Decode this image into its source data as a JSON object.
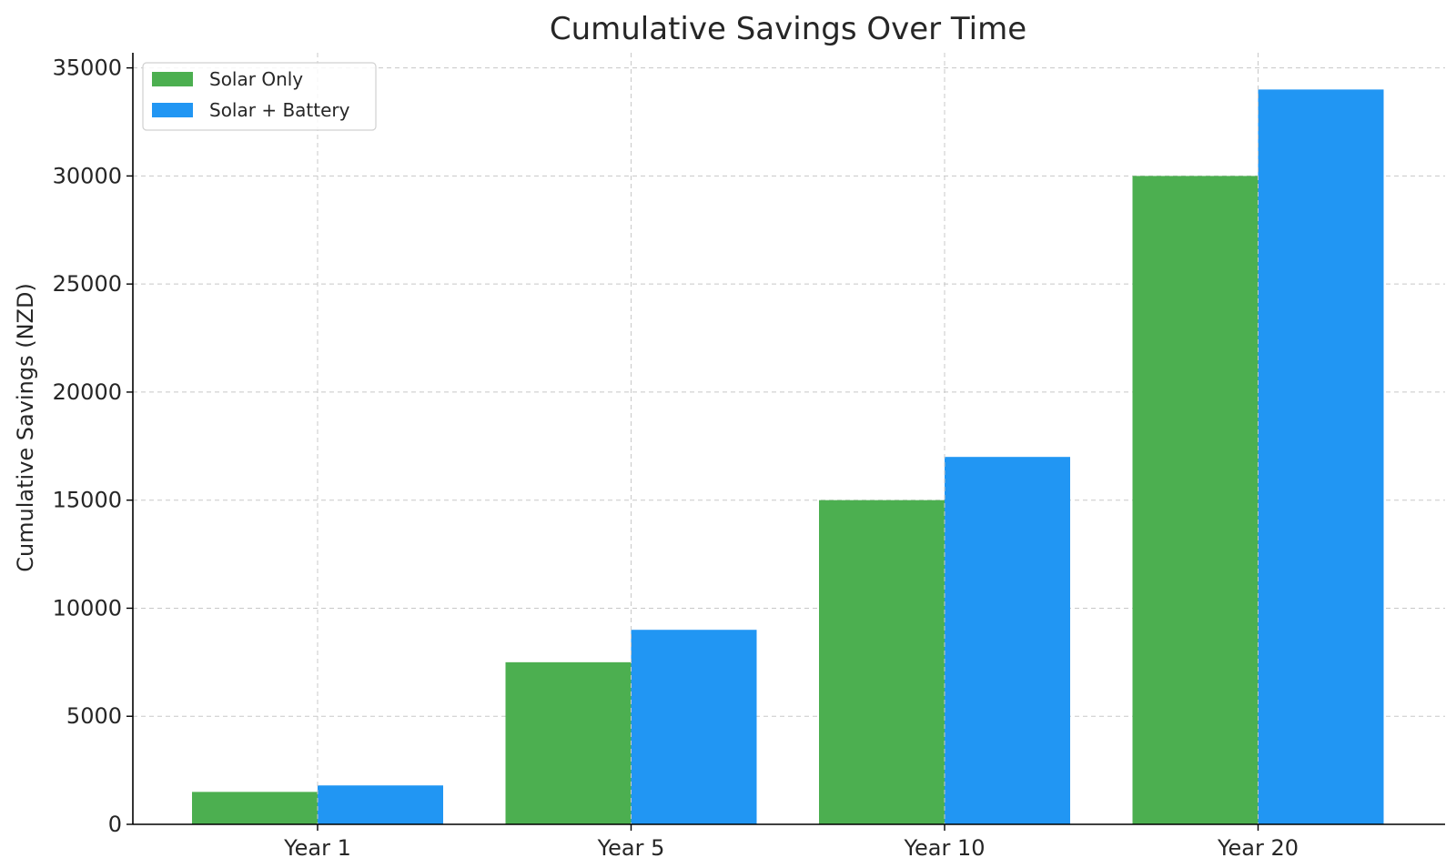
{
  "chart_data": {
    "type": "bar",
    "title": "Cumulative Savings Over Time",
    "xlabel": "",
    "ylabel": "Cumulative Savings (NZD)",
    "categories": [
      "Year 1",
      "Year 5",
      "Year 10",
      "Year 20"
    ],
    "series": [
      {
        "name": "Solar Only",
        "color": "#4caf50",
        "values": [
          1500,
          7500,
          15000,
          30000
        ]
      },
      {
        "name": "Solar + Battery",
        "color": "#2196f3",
        "values": [
          1800,
          9000,
          17000,
          34000
        ]
      }
    ],
    "ylim": [
      0,
      35700
    ],
    "yticks": [
      0,
      5000,
      10000,
      15000,
      20000,
      25000,
      30000,
      35000
    ],
    "ytick_labels": [
      "0",
      "5000",
      "10000",
      "15000",
      "20000",
      "25000",
      "30000",
      "35000"
    ],
    "grid": true,
    "legend_position": "top-left"
  }
}
